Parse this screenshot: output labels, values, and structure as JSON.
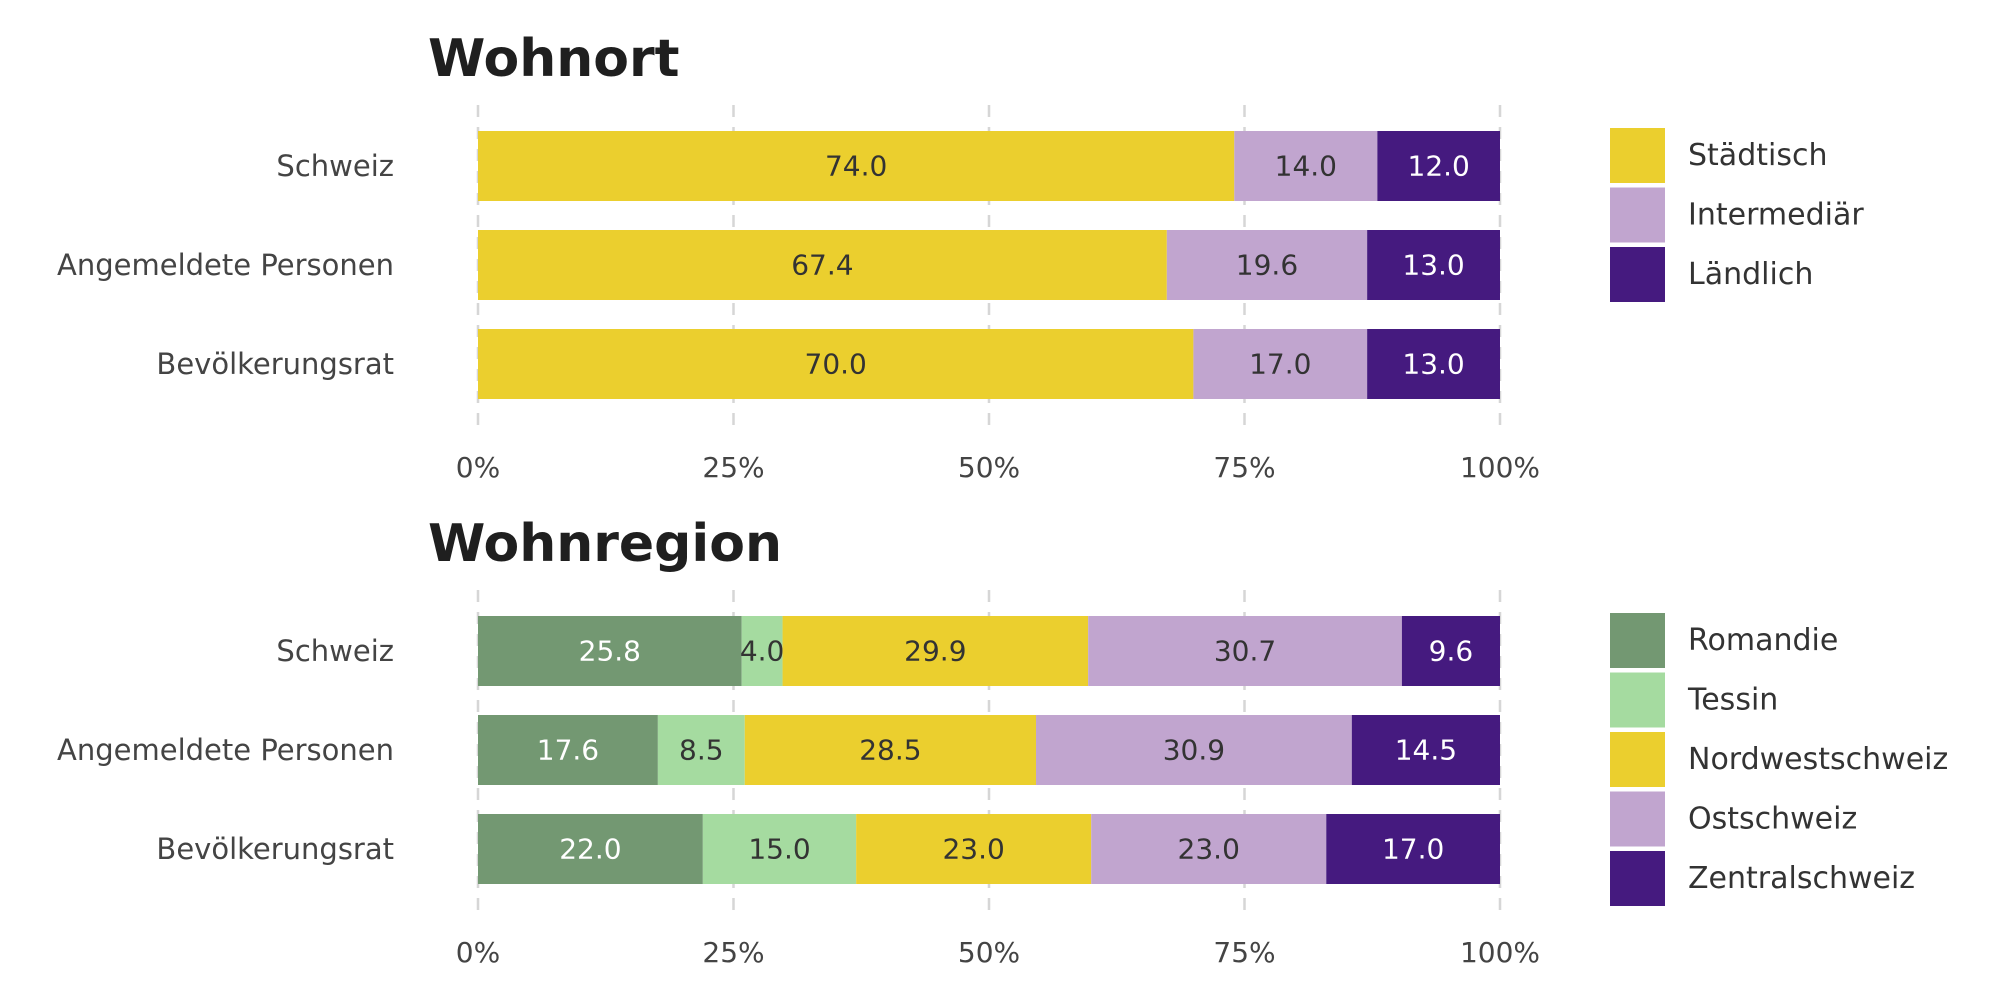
{
  "chart_data": [
    {
      "type": "bar",
      "orientation": "horizontal",
      "stacked": true,
      "title": "Wohnort",
      "categories": [
        "Schweiz",
        "Angemeldete Personen",
        "Bevölkerungsrat"
      ],
      "series": [
        {
          "name": "Städtisch",
          "color": "#ebcf2e",
          "label_color": "#333333",
          "values": [
            74.0,
            67.4,
            70.0
          ]
        },
        {
          "name": "Intermediär",
          "color": "#c1a5cf",
          "label_color": "#333333",
          "values": [
            14.0,
            19.6,
            17.0
          ]
        },
        {
          "name": "Ländlich",
          "color": "#451a7f",
          "label_color": "#ffffff",
          "values": [
            12.0,
            13.0,
            13.0
          ]
        }
      ],
      "xlim": [
        0,
        100
      ],
      "xticks": [
        "0%",
        "25%",
        "50%",
        "75%",
        "100%"
      ],
      "grid": true,
      "legend": "right"
    },
    {
      "type": "bar",
      "orientation": "horizontal",
      "stacked": true,
      "title": "Wohnregion",
      "categories": [
        "Schweiz",
        "Angemeldete Personen",
        "Bevölkerungsrat"
      ],
      "series": [
        {
          "name": "Romandie",
          "color": "#739872",
          "label_color": "#ffffff",
          "values": [
            25.8,
            17.6,
            22.0
          ]
        },
        {
          "name": "Tessin",
          "color": "#a5dba0",
          "label_color": "#333333",
          "values": [
            4.0,
            8.5,
            15.0
          ]
        },
        {
          "name": "Nordwestschweiz",
          "color": "#ebcf2e",
          "label_color": "#333333",
          "values": [
            29.9,
            28.5,
            23.0
          ]
        },
        {
          "name": "Ostschweiz",
          "color": "#c1a5cf",
          "label_color": "#333333",
          "values": [
            30.7,
            30.9,
            23.0
          ]
        },
        {
          "name": "Zentralschweiz",
          "color": "#451a7f",
          "label_color": "#ffffff",
          "values": [
            9.6,
            14.5,
            17.0
          ]
        }
      ],
      "xlim": [
        0,
        100
      ],
      "xticks": [
        "0%",
        "25%",
        "50%",
        "75%",
        "100%"
      ],
      "grid": true,
      "legend": "right"
    }
  ]
}
